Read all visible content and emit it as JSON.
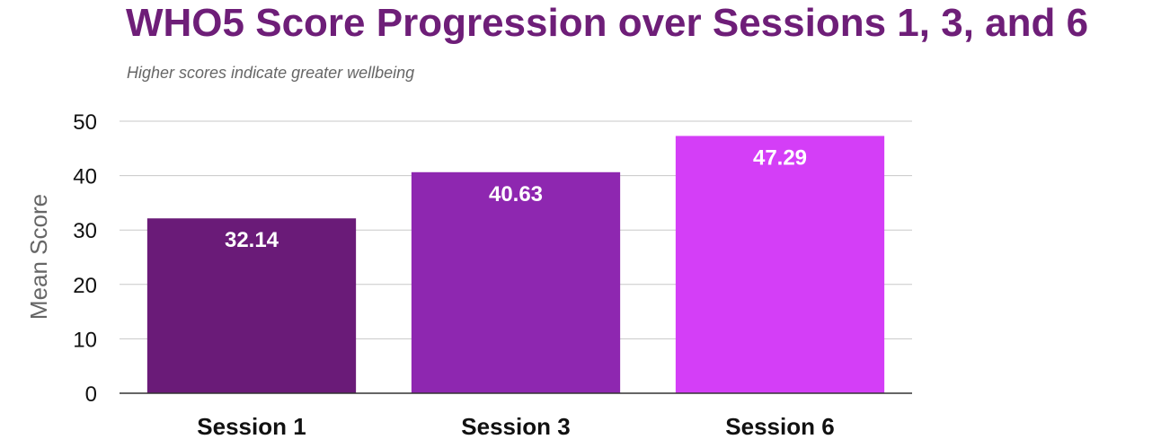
{
  "colors": {
    "title": "#6e1e78",
    "subtitle": "#666666",
    "grid": "#c8c8c8",
    "axis": "#333333",
    "bar_label": "#ffffff"
  },
  "chart_data": {
    "type": "bar",
    "title": "WHO5 Score Progression over Sessions 1, 3, and 6",
    "subtitle": "Higher scores indicate greater wellbeing",
    "xlabel": "",
    "ylabel": "Mean Score",
    "categories": [
      "Session 1",
      "Session 3",
      "Session 6"
    ],
    "values": [
      32.14,
      40.63,
      47.29
    ],
    "value_labels": [
      "32.14",
      "40.63",
      "47.29"
    ],
    "bar_colors": [
      "#6a1b78",
      "#8e27b0",
      "#d43ef7"
    ],
    "ylim": [
      0,
      50
    ],
    "yticks": [
      0,
      10,
      20,
      30,
      40,
      50
    ],
    "grid": true,
    "legend": "none"
  }
}
